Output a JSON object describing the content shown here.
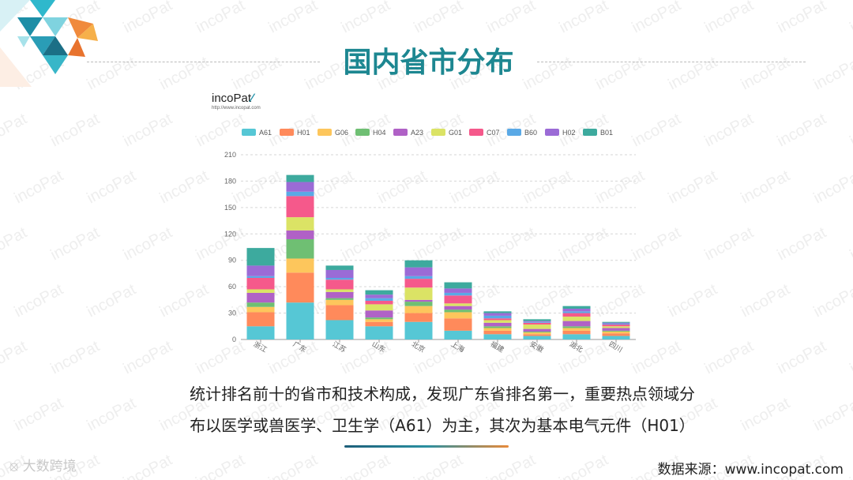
{
  "page": {
    "title": "国内省市分布",
    "brand_name": "incoPat",
    "brand_url": "http://www.incopat.com",
    "watermark_text": "incoPat",
    "caption_line1": "统计排名前十的省市和技术构成，发现广东省排名第一，重要热点领域分",
    "caption_line2": "布以医学或兽医学、卫生学（A61）为主，其次为基本电气元件（H01）",
    "footer_brand": "大数跨境",
    "source": "数据来源：www.incopat.com"
  },
  "chart_data": {
    "type": "bar",
    "stacked": true,
    "categories": [
      "浙江",
      "广东",
      "江苏",
      "山东",
      "北京",
      "上海",
      "福建",
      "安徽",
      "湖北",
      "四川"
    ],
    "ylim": [
      0,
      210
    ],
    "yticks": [
      0,
      30,
      60,
      90,
      120,
      150,
      180,
      210
    ],
    "grid": true,
    "legend_position": "top",
    "series": [
      {
        "name": "A61",
        "color": "#56c7d5",
        "values": [
          15,
          42,
          22,
          15,
          20,
          10,
          6,
          4,
          6,
          4
        ]
      },
      {
        "name": "H01",
        "color": "#ff8a5b",
        "values": [
          16,
          34,
          17,
          5,
          10,
          14,
          4,
          2,
          4,
          3
        ]
      },
      {
        "name": "G06",
        "color": "#fdc65c",
        "values": [
          6,
          16,
          6,
          3,
          8,
          7,
          3,
          2,
          3,
          2
        ]
      },
      {
        "name": "H04",
        "color": "#6fbf73",
        "values": [
          5,
          22,
          2,
          2,
          5,
          3,
          2,
          1,
          2,
          1
        ]
      },
      {
        "name": "A23",
        "color": "#b061c6",
        "values": [
          11,
          10,
          7,
          8,
          2,
          4,
          4,
          3,
          6,
          3
        ]
      },
      {
        "name": "G01",
        "color": "#dbe365",
        "values": [
          4,
          15,
          3,
          7,
          14,
          3,
          3,
          5,
          5,
          2
        ]
      },
      {
        "name": "C07",
        "color": "#f5598b",
        "values": [
          13,
          24,
          11,
          4,
          10,
          9,
          2,
          2,
          4,
          2
        ]
      },
      {
        "name": "B60",
        "color": "#5aa9e6",
        "values": [
          2,
          5,
          2,
          3,
          3,
          3,
          3,
          1,
          2,
          1
        ]
      },
      {
        "name": "H02",
        "color": "#9b6bd6",
        "values": [
          12,
          11,
          9,
          4,
          10,
          5,
          3,
          1,
          3,
          1
        ]
      },
      {
        "name": "B01",
        "color": "#3daa9e",
        "values": [
          20,
          8,
          5,
          5,
          8,
          7,
          2,
          2,
          3,
          1
        ]
      }
    ]
  }
}
